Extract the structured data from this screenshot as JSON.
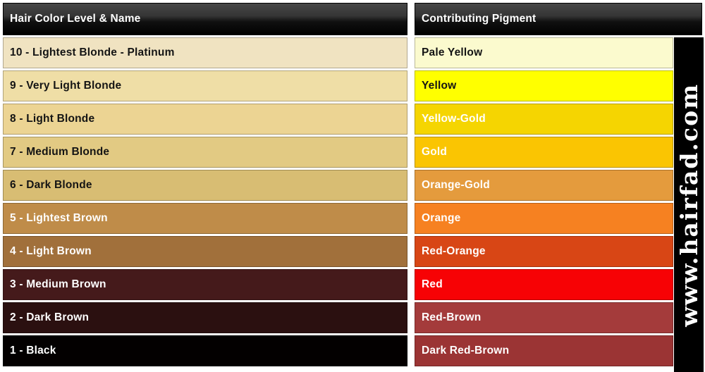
{
  "table": {
    "columns": [
      {
        "label": "Hair Color Level & Name"
      },
      {
        "label": "Contributing Pigment"
      }
    ],
    "rows": [
      {
        "level_label": "10 - Lightest Blonde - Platinum",
        "level_bg": "#F0E3C1",
        "level_fg": "#141414",
        "pigment_label": "Pale Yellow",
        "pigment_bg": "#FBFACE",
        "pigment_fg": "#141414"
      },
      {
        "level_label": "9 - Very Light Blonde",
        "level_bg": "#EFDEA6",
        "level_fg": "#141414",
        "pigment_label": "Yellow",
        "pigment_bg": "#FFFF00",
        "pigment_fg": "#141414"
      },
      {
        "level_label": "8 - Light Blonde",
        "level_bg": "#ECD493",
        "level_fg": "#141414",
        "pigment_label": "Yellow-Gold",
        "pigment_bg": "#F5D501",
        "pigment_fg": "#FFFFFF"
      },
      {
        "level_label": "7 - Medium Blonde",
        "level_bg": "#E2CA83",
        "level_fg": "#141414",
        "pigment_label": "Gold",
        "pigment_bg": "#FAC502",
        "pigment_fg": "#FFFFFF"
      },
      {
        "level_label": "6 - Dark Blonde",
        "level_bg": "#D8BD73",
        "level_fg": "#141414",
        "pigment_label": "Orange-Gold",
        "pigment_bg": "#E49B3D",
        "pigment_fg": "#FFFFFF"
      },
      {
        "level_label": "5 - Lightest Brown",
        "level_bg": "#BF8C49",
        "level_fg": "#FFFFFF",
        "pigment_label": "Orange",
        "pigment_bg": "#F68121",
        "pigment_fg": "#FFFFFF"
      },
      {
        "level_label": "4 - Light Brown",
        "level_bg": "#A1703B",
        "level_fg": "#FFFFFF",
        "pigment_label": "Red-Orange",
        "pigment_bg": "#D84615",
        "pigment_fg": "#FFFFFF"
      },
      {
        "level_label": "3 - Medium Brown",
        "level_bg": "#451A1B",
        "level_fg": "#FFFFFF",
        "pigment_label": "Red",
        "pigment_bg": "#F70205",
        "pigment_fg": "#FFFFFF"
      },
      {
        "level_label": "2 - Dark Brown",
        "level_bg": "#2B1010",
        "level_fg": "#FFFFFF",
        "pigment_label": "Red-Brown",
        "pigment_bg": "#A43B3B",
        "pigment_fg": "#FFFFFF"
      },
      {
        "level_label": "1 - Black",
        "level_bg": "#030000",
        "level_fg": "#FFFFFF",
        "pigment_label": "Dark Red-Brown",
        "pigment_bg": "#9B3434",
        "pigment_fg": "#FFFFFF"
      }
    ]
  },
  "watermark": {
    "text": "www.hairfad.com",
    "bg": "#000000",
    "fg": "#FFFFFF"
  },
  "colors": {
    "page_bg": "#FFFFFF",
    "header_bg_top": "#474747",
    "header_bg_bottom": "#000000",
    "header_fg": "#FFFFFF"
  }
}
